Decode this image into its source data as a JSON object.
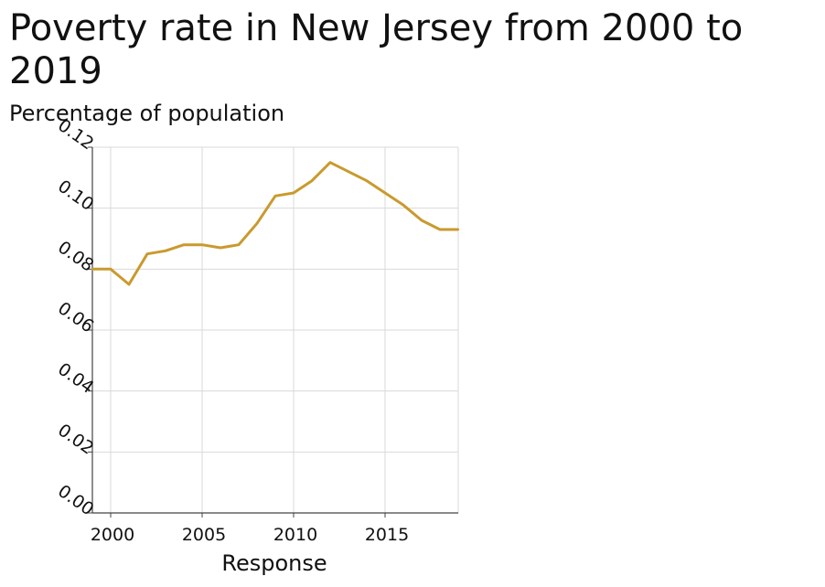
{
  "chart_data": {
    "type": "line",
    "title": "Poverty rate in New Jersey from 2000 to 2019",
    "ylabel": "Percentage of population",
    "xlabel": "Response",
    "xlim": [
      1999,
      2019
    ],
    "ylim": [
      0,
      0.12
    ],
    "x_ticks": [
      2000,
      2005,
      2010,
      2015
    ],
    "x_tick_labels": [
      "2000",
      "2005",
      "2010",
      "2015"
    ],
    "y_ticks": [
      0,
      0.02,
      0.04,
      0.06,
      0.08,
      0.1,
      0.12
    ],
    "y_tick_labels": [
      "0.00",
      "0.02",
      "0.04",
      "0.06",
      "0.08",
      "0.10",
      "0.12"
    ],
    "grid": true,
    "line_color": "#c99a2e",
    "series": [
      {
        "x": [
          1999,
          2000,
          2001,
          2002,
          2003,
          2004,
          2005,
          2006,
          2007,
          2008,
          2009,
          2010,
          2011,
          2012,
          2013,
          2014,
          2015,
          2016,
          2017,
          2018,
          2019
        ],
        "values": [
          0.08,
          0.08,
          0.075,
          0.085,
          0.086,
          0.088,
          0.088,
          0.087,
          0.088,
          0.095,
          0.104,
          0.105,
          0.109,
          0.115,
          0.112,
          0.109,
          0.105,
          0.101,
          0.096,
          0.093,
          0.093
        ]
      }
    ]
  }
}
